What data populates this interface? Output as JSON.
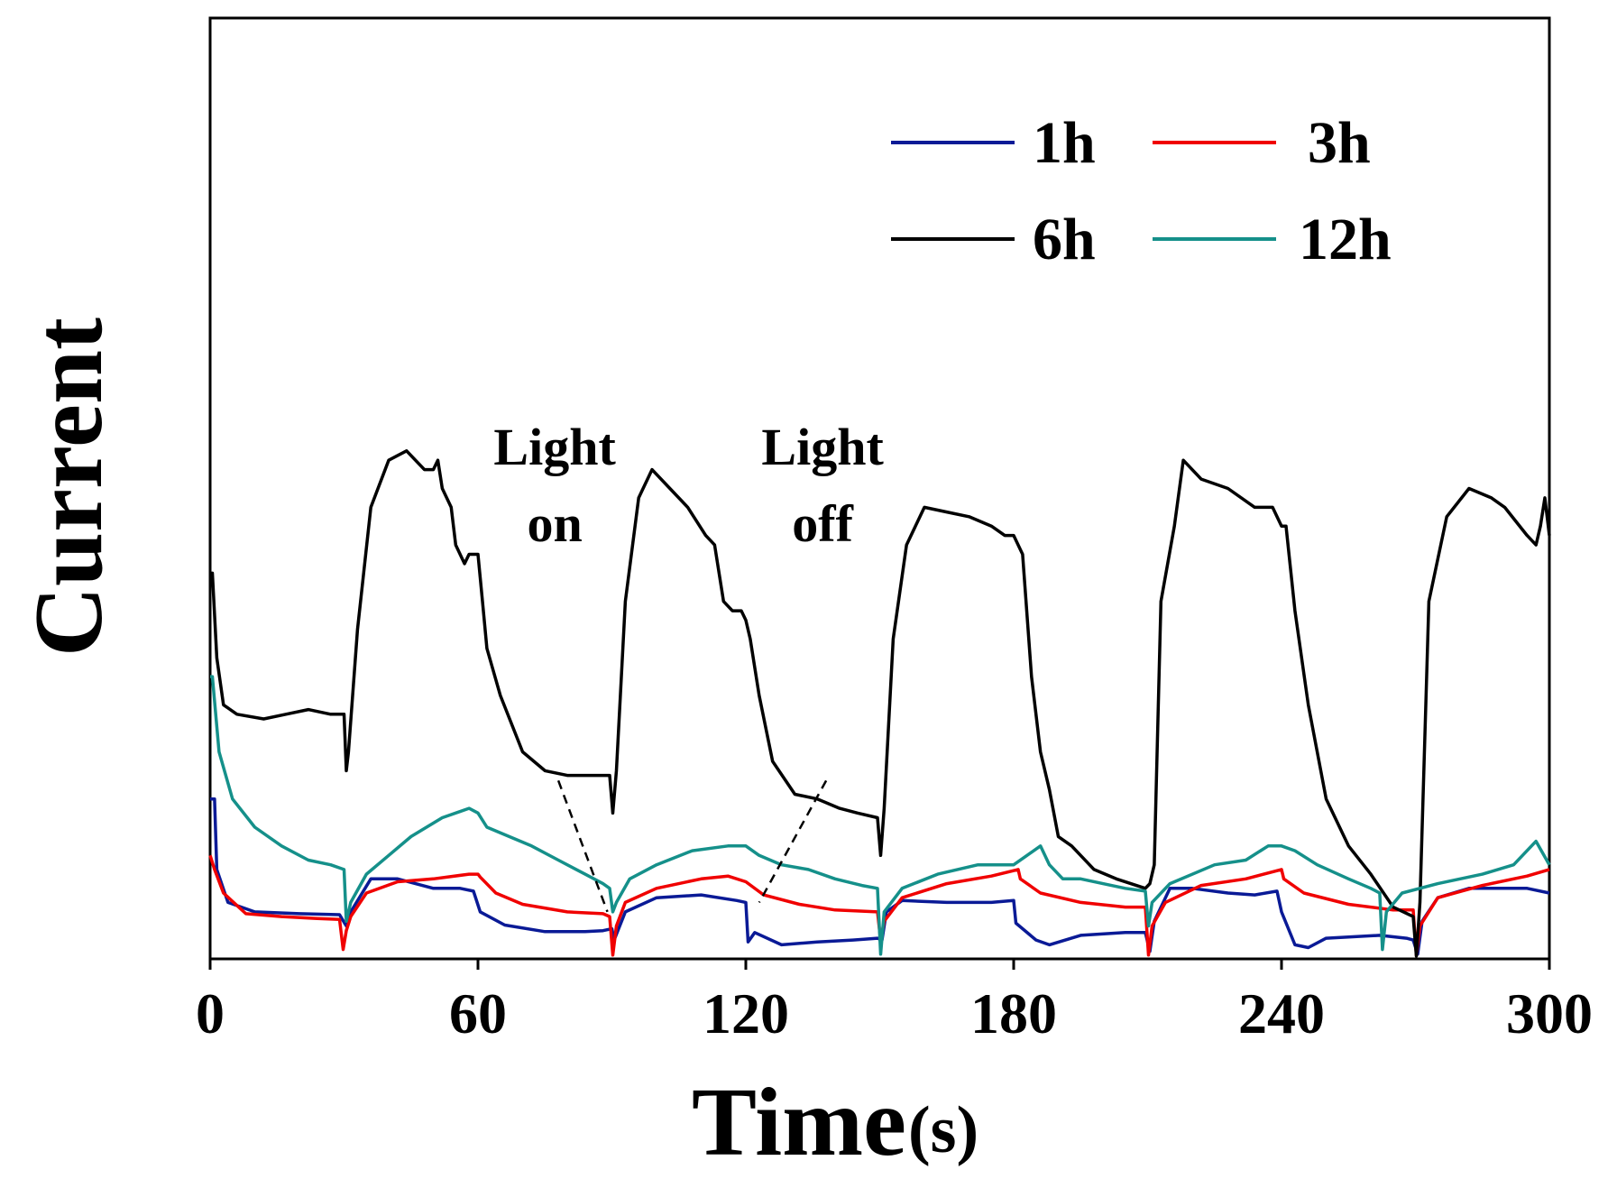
{
  "chart_data": {
    "type": "line",
    "title": "",
    "xlabel": "Time",
    "xlabel_unit": "(s)",
    "ylabel": "Current",
    "xlim": [
      0,
      300
    ],
    "ylim": [
      0,
      1
    ],
    "x_ticks": [
      0,
      60,
      120,
      180,
      240,
      300
    ],
    "x_tick_labels": [
      "0",
      "60",
      "120",
      "180",
      "240",
      "300"
    ],
    "y_ticks": [],
    "grid": false,
    "legend_position": "top-right",
    "series": [
      {
        "name": "1h",
        "color": "#0a1a96",
        "points": [
          [
            0,
            0.17
          ],
          [
            1,
            0.17
          ],
          [
            1.5,
            0.095
          ],
          [
            4,
            0.06
          ],
          [
            10,
            0.05
          ],
          [
            20,
            0.048
          ],
          [
            29,
            0.047
          ],
          [
            30.5,
            0.035
          ],
          [
            31.5,
            0.05
          ],
          [
            36,
            0.085
          ],
          [
            42,
            0.085
          ],
          [
            50,
            0.075
          ],
          [
            56,
            0.075
          ],
          [
            59,
            0.072
          ],
          [
            60.5,
            0.05
          ],
          [
            66,
            0.036
          ],
          [
            75,
            0.029
          ],
          [
            84,
            0.029
          ],
          [
            88,
            0.03
          ],
          [
            90,
            0.032
          ],
          [
            90.5,
            0.02
          ],
          [
            93,
            0.05
          ],
          [
            100,
            0.065
          ],
          [
            110,
            0.068
          ],
          [
            118,
            0.062
          ],
          [
            120,
            0.06
          ],
          [
            120.5,
            0.018
          ],
          [
            122,
            0.028
          ],
          [
            128,
            0.015
          ],
          [
            136,
            0.018
          ],
          [
            144,
            0.02
          ],
          [
            149.5,
            0.022
          ],
          [
            150.5,
            0.02
          ],
          [
            151.5,
            0.05
          ],
          [
            155,
            0.062
          ],
          [
            165,
            0.06
          ],
          [
            175,
            0.06
          ],
          [
            180,
            0.062
          ],
          [
            180.5,
            0.038
          ],
          [
            185,
            0.02
          ],
          [
            188,
            0.015
          ],
          [
            195,
            0.025
          ],
          [
            205,
            0.028
          ],
          [
            209.5,
            0.028
          ],
          [
            210.5,
            0.008
          ],
          [
            211.5,
            0.04
          ],
          [
            215,
            0.075
          ],
          [
            220,
            0.075
          ],
          [
            228,
            0.07
          ],
          [
            234,
            0.068
          ],
          [
            239,
            0.072
          ],
          [
            240,
            0.05
          ],
          [
            243,
            0.015
          ],
          [
            246,
            0.012
          ],
          [
            250,
            0.022
          ],
          [
            262,
            0.025
          ],
          [
            268,
            0.022
          ],
          [
            269.5,
            0.02
          ],
          [
            270.5,
            0.005
          ],
          [
            271.5,
            0.04
          ],
          [
            275,
            0.065
          ],
          [
            282,
            0.075
          ],
          [
            290,
            0.075
          ],
          [
            295,
            0.075
          ],
          [
            300,
            0.07
          ]
        ]
      },
      {
        "name": "3h",
        "color": "#f00000",
        "points": [
          [
            0,
            0.11
          ],
          [
            1,
            0.095
          ],
          [
            3,
            0.07
          ],
          [
            8,
            0.048
          ],
          [
            16,
            0.045
          ],
          [
            24,
            0.043
          ],
          [
            29,
            0.042
          ],
          [
            29.8,
            0.01
          ],
          [
            30.5,
            0.03
          ],
          [
            31.5,
            0.045
          ],
          [
            35,
            0.07
          ],
          [
            42,
            0.082
          ],
          [
            50,
            0.085
          ],
          [
            58,
            0.09
          ],
          [
            60,
            0.09
          ],
          [
            60.5,
            0.087
          ],
          [
            64,
            0.07
          ],
          [
            70,
            0.058
          ],
          [
            80,
            0.05
          ],
          [
            88,
            0.048
          ],
          [
            89.5,
            0.045
          ],
          [
            90.2,
            0.004
          ],
          [
            91,
            0.035
          ],
          [
            93,
            0.06
          ],
          [
            100,
            0.075
          ],
          [
            110,
            0.085
          ],
          [
            116,
            0.088
          ],
          [
            120,
            0.082
          ],
          [
            124,
            0.068
          ],
          [
            132,
            0.058
          ],
          [
            140,
            0.052
          ],
          [
            149.5,
            0.05
          ],
          [
            150.2,
            0.02
          ],
          [
            151,
            0.04
          ],
          [
            155,
            0.065
          ],
          [
            165,
            0.08
          ],
          [
            175,
            0.088
          ],
          [
            181,
            0.095
          ],
          [
            181.5,
            0.085
          ],
          [
            186,
            0.07
          ],
          [
            195,
            0.06
          ],
          [
            205,
            0.055
          ],
          [
            209.5,
            0.055
          ],
          [
            210.2,
            0.004
          ],
          [
            211,
            0.035
          ],
          [
            214,
            0.06
          ],
          [
            222,
            0.078
          ],
          [
            232,
            0.085
          ],
          [
            240,
            0.095
          ],
          [
            240.5,
            0.085
          ],
          [
            245,
            0.07
          ],
          [
            255,
            0.058
          ],
          [
            265,
            0.052
          ],
          [
            269.5,
            0.052
          ],
          [
            270.2,
            0.004
          ],
          [
            271,
            0.035
          ],
          [
            275,
            0.065
          ],
          [
            285,
            0.078
          ],
          [
            295,
            0.088
          ],
          [
            300,
            0.095
          ]
        ]
      },
      {
        "name": "6h",
        "color": "#000000",
        "points": [
          [
            0,
            0.41
          ],
          [
            0.5,
            0.41
          ],
          [
            1.5,
            0.32
          ],
          [
            3,
            0.27
          ],
          [
            6,
            0.26
          ],
          [
            12,
            0.255
          ],
          [
            17,
            0.26
          ],
          [
            22,
            0.265
          ],
          [
            27,
            0.26
          ],
          [
            30,
            0.26
          ],
          [
            30.5,
            0.2
          ],
          [
            31,
            0.22
          ],
          [
            33,
            0.35
          ],
          [
            36,
            0.48
          ],
          [
            40,
            0.53
          ],
          [
            44,
            0.54
          ],
          [
            48,
            0.52
          ],
          [
            50,
            0.52
          ],
          [
            51,
            0.53
          ],
          [
            52,
            0.5
          ],
          [
            54,
            0.48
          ],
          [
            55,
            0.44
          ],
          [
            56,
            0.43
          ],
          [
            57,
            0.42
          ],
          [
            58,
            0.43
          ],
          [
            60,
            0.43
          ],
          [
            61,
            0.38
          ],
          [
            62,
            0.33
          ],
          [
            65,
            0.28
          ],
          [
            70,
            0.22
          ],
          [
            75,
            0.2
          ],
          [
            80,
            0.195
          ],
          [
            85,
            0.195
          ],
          [
            89.5,
            0.195
          ],
          [
            90.2,
            0.155
          ],
          [
            91,
            0.2
          ],
          [
            93,
            0.38
          ],
          [
            96,
            0.49
          ],
          [
            99,
            0.52
          ],
          [
            103,
            0.5
          ],
          [
            107,
            0.48
          ],
          [
            111,
            0.45
          ],
          [
            113,
            0.44
          ],
          [
            115,
            0.38
          ],
          [
            117,
            0.37
          ],
          [
            119,
            0.37
          ],
          [
            120,
            0.36
          ],
          [
            121,
            0.34
          ],
          [
            123,
            0.28
          ],
          [
            126,
            0.21
          ],
          [
            131,
            0.175
          ],
          [
            136,
            0.17
          ],
          [
            141,
            0.16
          ],
          [
            145,
            0.155
          ],
          [
            149.5,
            0.15
          ],
          [
            150.2,
            0.11
          ],
          [
            151,
            0.16
          ],
          [
            153,
            0.34
          ],
          [
            156,
            0.44
          ],
          [
            160,
            0.48
          ],
          [
            165,
            0.475
          ],
          [
            170,
            0.47
          ],
          [
            175,
            0.46
          ],
          [
            178,
            0.45
          ],
          [
            180,
            0.45
          ],
          [
            182,
            0.43
          ],
          [
            184,
            0.3
          ],
          [
            186,
            0.22
          ],
          [
            188,
            0.18
          ],
          [
            190,
            0.13
          ],
          [
            193,
            0.12
          ],
          [
            198,
            0.095
          ],
          [
            203,
            0.085
          ],
          [
            209.5,
            0.075
          ],
          [
            210.5,
            0.08
          ],
          [
            211.5,
            0.1
          ],
          [
            213,
            0.38
          ],
          [
            216,
            0.46
          ],
          [
            218,
            0.53
          ],
          [
            222,
            0.51
          ],
          [
            228,
            0.5
          ],
          [
            234,
            0.48
          ],
          [
            238,
            0.48
          ],
          [
            240,
            0.46
          ],
          [
            241,
            0.46
          ],
          [
            243,
            0.37
          ],
          [
            246,
            0.27
          ],
          [
            250,
            0.17
          ],
          [
            255,
            0.12
          ],
          [
            260,
            0.09
          ],
          [
            265,
            0.055
          ],
          [
            269.5,
            0.045
          ],
          [
            270.2,
            0.003
          ],
          [
            271,
            0.06
          ],
          [
            273,
            0.38
          ],
          [
            277,
            0.47
          ],
          [
            282,
            0.5
          ],
          [
            287,
            0.49
          ],
          [
            290,
            0.48
          ],
          [
            295,
            0.45
          ],
          [
            297,
            0.44
          ],
          [
            298,
            0.46
          ],
          [
            299,
            0.49
          ],
          [
            300,
            0.45
          ]
        ]
      },
      {
        "name": "12h",
        "color": "#15908a",
        "points": [
          [
            0,
            0.3
          ],
          [
            0.5,
            0.3
          ],
          [
            2,
            0.22
          ],
          [
            5,
            0.17
          ],
          [
            10,
            0.14
          ],
          [
            16,
            0.12
          ],
          [
            22,
            0.105
          ],
          [
            27,
            0.1
          ],
          [
            30,
            0.095
          ],
          [
            30.5,
            0.04
          ],
          [
            31.5,
            0.06
          ],
          [
            35,
            0.09
          ],
          [
            40,
            0.11
          ],
          [
            45,
            0.13
          ],
          [
            52,
            0.15
          ],
          [
            58,
            0.16
          ],
          [
            60,
            0.155
          ],
          [
            62,
            0.14
          ],
          [
            67,
            0.13
          ],
          [
            72,
            0.12
          ],
          [
            78,
            0.105
          ],
          [
            84,
            0.09
          ],
          [
            88,
            0.08
          ],
          [
            89.5,
            0.075
          ],
          [
            90.2,
            0.05
          ],
          [
            91,
            0.06
          ],
          [
            94,
            0.085
          ],
          [
            100,
            0.1
          ],
          [
            108,
            0.115
          ],
          [
            116,
            0.12
          ],
          [
            120,
            0.12
          ],
          [
            123,
            0.11
          ],
          [
            128,
            0.1
          ],
          [
            134,
            0.095
          ],
          [
            140,
            0.085
          ],
          [
            146,
            0.078
          ],
          [
            149.5,
            0.075
          ],
          [
            150.2,
            0.005
          ],
          [
            151,
            0.05
          ],
          [
            155,
            0.075
          ],
          [
            163,
            0.09
          ],
          [
            172,
            0.1
          ],
          [
            180,
            0.1
          ],
          [
            183,
            0.11
          ],
          [
            186,
            0.12
          ],
          [
            188,
            0.1
          ],
          [
            191,
            0.085
          ],
          [
            195,
            0.085
          ],
          [
            200,
            0.08
          ],
          [
            205,
            0.075
          ],
          [
            209.5,
            0.072
          ],
          [
            210.2,
            0.035
          ],
          [
            211,
            0.06
          ],
          [
            215,
            0.08
          ],
          [
            225,
            0.1
          ],
          [
            232,
            0.105
          ],
          [
            237,
            0.12
          ],
          [
            240,
            0.12
          ],
          [
            243,
            0.115
          ],
          [
            248,
            0.1
          ],
          [
            255,
            0.085
          ],
          [
            260,
            0.075
          ],
          [
            262,
            0.07
          ],
          [
            262.6,
            0.01
          ],
          [
            263.5,
            0.05
          ],
          [
            267,
            0.07
          ],
          [
            275,
            0.08
          ],
          [
            285,
            0.09
          ],
          [
            292,
            0.1
          ],
          [
            297,
            0.125
          ],
          [
            300,
            0.1
          ]
        ]
      }
    ],
    "annotations": [
      {
        "line1": "Light",
        "line2": "on",
        "from": [
          78,
          0.41
        ],
        "to": [
          89,
          0.05
        ]
      },
      {
        "line1": "Light",
        "line2": "off",
        "from": [
          138,
          0.41
        ],
        "to": [
          123,
          0.06
        ]
      }
    ]
  }
}
